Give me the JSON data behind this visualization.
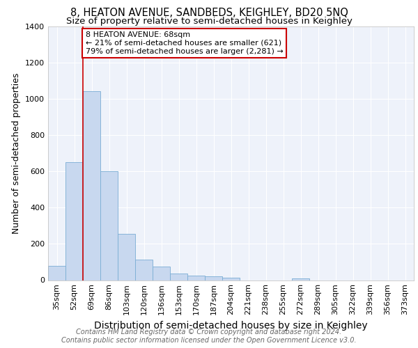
{
  "title": "8, HEATON AVENUE, SANDBEDS, KEIGHLEY, BD20 5NQ",
  "subtitle": "Size of property relative to semi-detached houses in Keighley",
  "xlabel": "Distribution of semi-detached houses by size in Keighley",
  "ylabel": "Number of semi-detached properties",
  "bins": [
    "35sqm",
    "52sqm",
    "69sqm",
    "86sqm",
    "103sqm",
    "120sqm",
    "136sqm",
    "153sqm",
    "170sqm",
    "187sqm",
    "204sqm",
    "221sqm",
    "238sqm",
    "255sqm",
    "272sqm",
    "289sqm",
    "305sqm",
    "322sqm",
    "339sqm",
    "356sqm",
    "373sqm"
  ],
  "values": [
    80,
    650,
    1040,
    600,
    255,
    115,
    75,
    35,
    25,
    20,
    15,
    0,
    0,
    0,
    10,
    0,
    0,
    0,
    0,
    0,
    0
  ],
  "bar_color": "#c8d8ef",
  "bar_edge_color": "#7aadd4",
  "highlight_line_color": "#cc0000",
  "highlight_bin_index": 2,
  "annotation_line1": "8 HEATON AVENUE: 68sqm",
  "annotation_line2": "← 21% of semi-detached houses are smaller (621)",
  "annotation_line3": "79% of semi-detached houses are larger (2,281) →",
  "annotation_box_color": "#cc0000",
  "ylim": [
    0,
    1400
  ],
  "yticks": [
    0,
    200,
    400,
    600,
    800,
    1000,
    1200,
    1400
  ],
  "footer_line1": "Contains HM Land Registry data © Crown copyright and database right 2024.",
  "footer_line2": "Contains public sector information licensed under the Open Government Licence v3.0.",
  "background_color": "#eef2fa",
  "grid_color": "#ffffff",
  "title_fontsize": 10.5,
  "subtitle_fontsize": 9.5,
  "xlabel_fontsize": 10,
  "ylabel_fontsize": 9,
  "tick_fontsize": 8,
  "annotation_fontsize": 8,
  "footer_fontsize": 7
}
